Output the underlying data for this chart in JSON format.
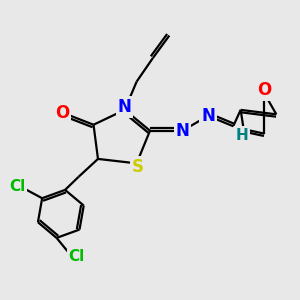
{
  "background_color": "#e8e8e8",
  "bond_color": "#000000",
  "atom_colors": {
    "N": "#0000ff",
    "O": "#ff0000",
    "S": "#cccc00",
    "Cl": "#00bb00",
    "H": "#008080",
    "C": "#000000"
  },
  "lw": 1.6,
  "fs": 11,
  "fig_size": 3.0,
  "dpi": 100
}
